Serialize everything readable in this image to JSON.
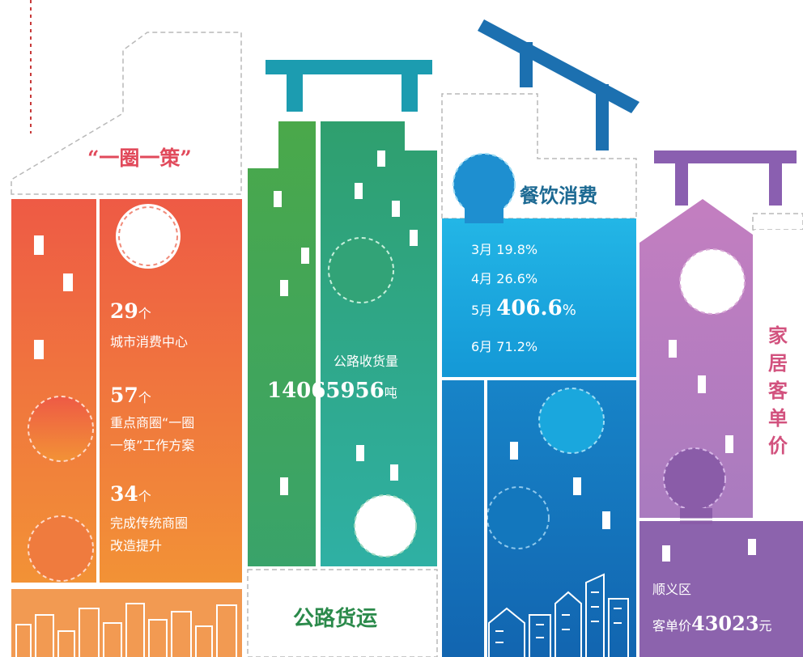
{
  "colors": {
    "orange_top": "#ef6443",
    "orange_bottom": "#f08a38",
    "green_dark": "#3fa65a",
    "green_teal": "#2fa99a",
    "blue_sky": "#1aa7dd",
    "blue_deep": "#1479c0",
    "purple_light": "#c084c2",
    "purple_dark": "#8a57a6",
    "pipe_teal": "#1c9cb0",
    "pipe_blue": "#1c70b0",
    "pipe_purple": "#8a5fb0",
    "title_red": "#e14a5b",
    "title_blue": "#1d6a93",
    "title_green": "#2b8a4b",
    "title_pink": "#d2527e"
  },
  "orange_panel": {
    "title": "“一圈一策”",
    "stats": [
      {
        "number": "29",
        "unit": "个",
        "desc": [
          "城市消费中心"
        ]
      },
      {
        "number": "57",
        "unit": "个",
        "desc": [
          "重点商圈“一圈",
          "一策”工作方案"
        ]
      },
      {
        "number": "34",
        "unit": "个",
        "desc": [
          "完成传统商圈",
          "改造提升"
        ]
      }
    ]
  },
  "green_panel": {
    "title": "公路货运",
    "label": "公路收货量",
    "number": "14065956",
    "unit": "吨"
  },
  "blue_panel": {
    "title": "餐饮消费",
    "rows": [
      {
        "month": "3月",
        "value": "19.8%"
      },
      {
        "month": "4月",
        "value": "26.6%"
      },
      {
        "month": "5月",
        "value": "406.6",
        "suffix": "%"
      },
      {
        "month": "6月",
        "value": "71.2%"
      }
    ]
  },
  "purple_panel": {
    "title_chars": [
      "家",
      "居",
      "客",
      "单",
      "价"
    ],
    "area": "顺义区",
    "price_label": "客单价",
    "price_value": "43023",
    "price_unit": "元"
  }
}
